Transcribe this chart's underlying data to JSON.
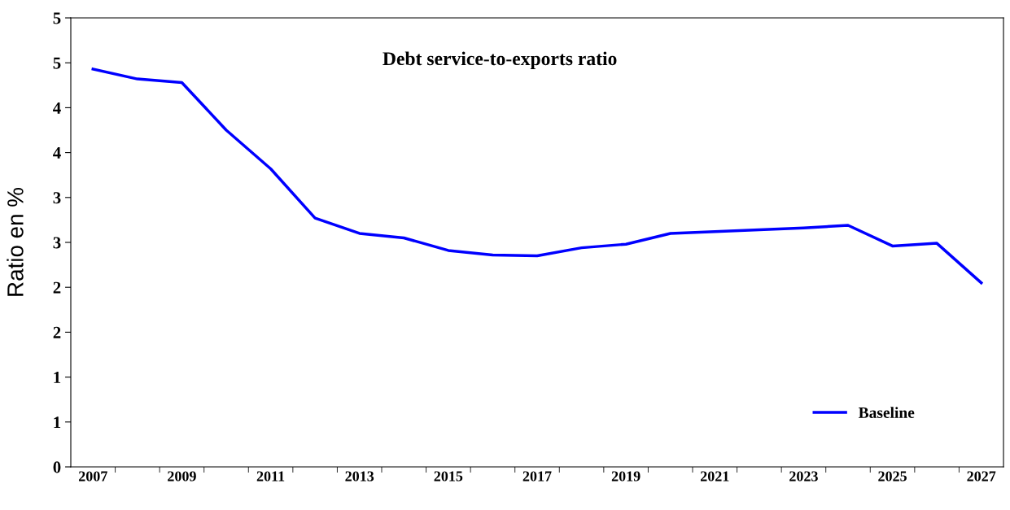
{
  "chart_data": {
    "type": "line",
    "title": "Debt service-to-exports ratio",
    "ylabel": "Ratio en %",
    "categories": [
      "2007",
      null,
      "2009",
      null,
      "2011",
      null,
      "2013",
      null,
      "2015",
      null,
      "2017",
      null,
      "2019",
      null,
      "2021",
      null,
      "2023",
      null,
      "2025",
      null,
      "2027"
    ],
    "series": [
      {
        "name": "Baseline",
        "color": "#0000ff",
        "values": [
          4.43,
          4.32,
          4.28,
          3.75,
          3.32,
          2.77,
          2.6,
          2.55,
          2.41,
          2.36,
          2.35,
          2.44,
          2.48,
          2.6,
          2.62,
          2.64,
          2.66,
          2.69,
          2.46,
          2.49,
          2.05
        ]
      }
    ],
    "ylim": [
      0,
      5
    ],
    "yticks": [
      0,
      {
        "value": 0.5,
        "label": "1"
      },
      1,
      {
        "value": 1.5,
        "label": "2"
      },
      2,
      {
        "value": 2.5,
        "label": "3"
      },
      3,
      {
        "value": 3.5,
        "label": "4"
      },
      4,
      {
        "value": 4.5,
        "label": "5"
      },
      5
    ],
    "grid": false,
    "legend": "bottom right",
    "marker": "none",
    "line_style": "solid"
  }
}
